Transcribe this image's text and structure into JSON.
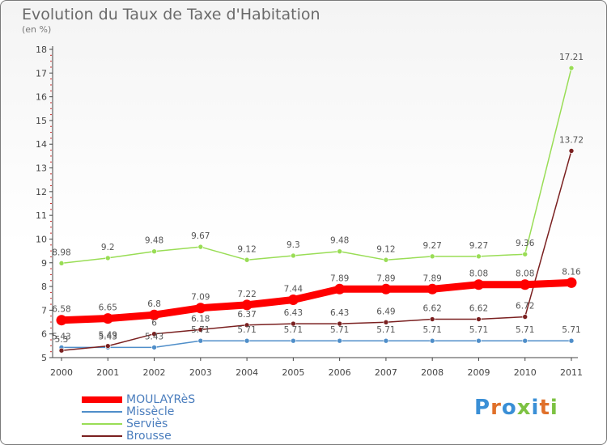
{
  "chart_data": {
    "type": "line",
    "title": "Evolution du Taux de Taxe d'Habitation",
    "subtitle": "(en %)",
    "x": [
      "2000",
      "2001",
      "2002",
      "2003",
      "2004",
      "2005",
      "2006",
      "2007",
      "2008",
      "2009",
      "2010",
      "2011"
    ],
    "yticks": [
      "5",
      "6",
      "7",
      "8",
      "9",
      "10",
      "11",
      "12",
      "13",
      "14",
      "15",
      "16",
      "17",
      "18"
    ],
    "ylim": [
      5,
      18
    ],
    "grid": false,
    "legend_position": "bottom-left",
    "series": [
      {
        "name": "MOULAYRèS",
        "color": "#ff0000",
        "values": [
          6.58,
          6.65,
          6.8,
          7.09,
          7.22,
          7.44,
          7.89,
          7.89,
          7.89,
          8.08,
          8.08,
          8.16
        ],
        "labels": [
          "6.58",
          "6.65",
          "6.8",
          "7.09",
          "7.22",
          "7.44",
          "7.89",
          "7.89",
          "7.89",
          "8.08",
          "8.08",
          "8.16"
        ]
      },
      {
        "name": "Missècle",
        "color": "#4f8ec9",
        "values": [
          5.43,
          5.43,
          5.43,
          5.71,
          5.71,
          5.71,
          5.71,
          5.71,
          5.71,
          5.71,
          5.71,
          5.71
        ],
        "labels": [
          "5.43",
          "5.43",
          "5.43",
          "5.71",
          "5.71",
          "5.71",
          "5.71",
          "5.71",
          "5.71",
          "5.71",
          "5.71",
          "5.71"
        ]
      },
      {
        "name": "Serviès",
        "color": "#99dd55",
        "values": [
          8.98,
          9.2,
          9.48,
          9.67,
          9.12,
          9.3,
          9.48,
          9.12,
          9.27,
          9.27,
          9.36,
          17.21
        ],
        "labels": [
          "8.98",
          "9.2",
          "9.48",
          "9.67",
          "9.12",
          "9.3",
          "9.48",
          "9.12",
          "9.27",
          "9.27",
          "9.36",
          "17.21"
        ]
      },
      {
        "name": "Brousse",
        "color": "#7a2020",
        "values": [
          5.3,
          5.49,
          6,
          6.18,
          6.37,
          6.43,
          6.43,
          6.49,
          6.62,
          6.62,
          6.72,
          13.72
        ],
        "labels": [
          "5.3",
          "5.49",
          "6",
          "6.18",
          "6.37",
          "6.43",
          "6.43",
          "6.49",
          "6.62",
          "6.62",
          "6.72",
          "13.72"
        ]
      }
    ]
  },
  "legend": {
    "items": [
      {
        "label": "MOULAYRèS"
      },
      {
        "label": "Missècle"
      },
      {
        "label": "Serviès"
      },
      {
        "label": "Brousse"
      }
    ]
  },
  "logo": {
    "text": "Proxiti",
    "letter_colors": [
      "#3a8fd6",
      "#e0702a",
      "#3a8fd6",
      "#7dc242",
      "#3a8fd6",
      "#e0702a",
      "#7dc242"
    ]
  }
}
